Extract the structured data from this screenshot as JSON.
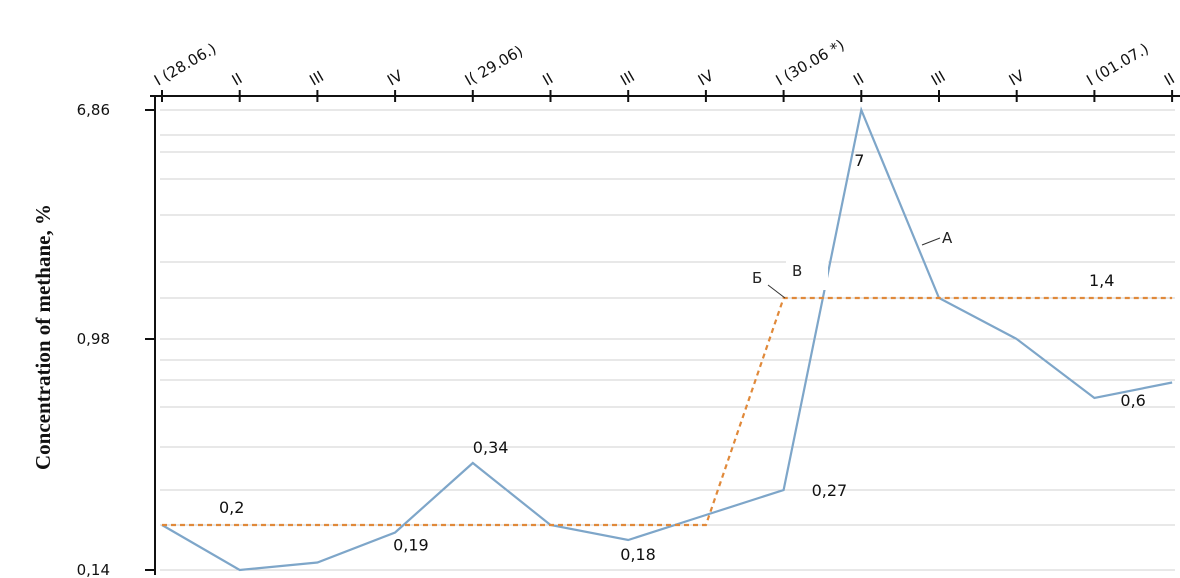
{
  "chart_data": {
    "type": "line",
    "ylabel": "Concentration of methane, %",
    "xlabel": "",
    "title": "",
    "y_tick_labels": [
      "6,86",
      "0,98",
      "0,14"
    ],
    "x_tick_labels": [
      "I (28.06.)",
      "II",
      "III",
      "IV",
      "I( 29.06)",
      "II",
      "III",
      "IV",
      "I (30.06 *)",
      "II",
      "III",
      "IV",
      "I (01.07.)",
      "II"
    ],
    "series": [
      {
        "name": "A",
        "color": "#7ea6c9",
        "values": [
          0.2,
          0.14,
          0.15,
          0.19,
          0.34,
          0.2,
          0.18,
          0.22,
          0.27,
          6.86,
          1.4,
          0.98,
          0.6,
          0.7
        ],
        "labels": [
          {
            "index": 3,
            "text": "0,19"
          },
          {
            "index": 4,
            "text": "0,34"
          },
          {
            "index": 6,
            "text": "0,18"
          },
          {
            "index": 8,
            "text": "0,27"
          },
          {
            "index": 9,
            "text": "7"
          },
          {
            "index": 12,
            "text": "0,6"
          }
        ]
      },
      {
        "name": "Б",
        "color": "#e0893a",
        "dashed": true,
        "values": [
          0.2,
          0.2,
          0.2,
          0.2,
          0.2,
          0.2,
          0.2,
          0.2,
          1.4,
          1.4,
          1.4,
          1.4,
          1.4,
          1.4
        ],
        "labels": [
          {
            "index": 1,
            "text": "0,2"
          },
          {
            "index": 12,
            "text": "1,4"
          }
        ]
      }
    ],
    "annotations": [
      "A",
      "Б",
      "B"
    ],
    "grid": true
  }
}
